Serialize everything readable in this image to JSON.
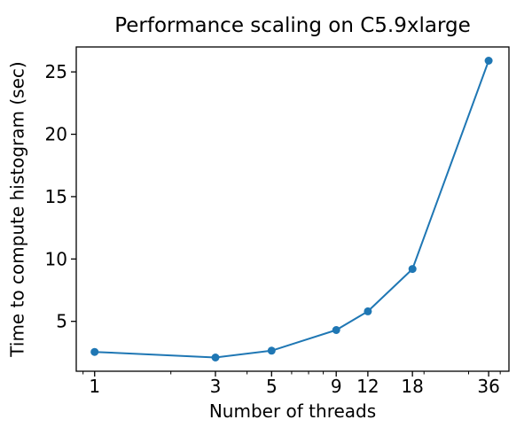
{
  "chart_data": {
    "type": "line",
    "title": "Performance scaling on C5.9xlarge",
    "xlabel": "Number of threads",
    "ylabel": "Time to compute histogram (sec)",
    "xscale": "log",
    "x": [
      1,
      3,
      5,
      9,
      12,
      18,
      36
    ],
    "y": [
      2.55,
      2.1,
      2.65,
      4.3,
      5.8,
      9.2,
      25.9
    ],
    "xticks": [
      1,
      3,
      5,
      9,
      12,
      18,
      36
    ],
    "xminorticks": [
      0.9,
      2,
      4,
      6,
      7,
      8,
      20,
      30,
      40
    ],
    "yticks": [
      5,
      10,
      15,
      20,
      25
    ],
    "xlim": [
      0.846,
      43.3
    ],
    "ylim": [
      1.0,
      27.0
    ],
    "line_color": "#1f77b4",
    "marker": "o",
    "grid": false,
    "legend": null
  }
}
